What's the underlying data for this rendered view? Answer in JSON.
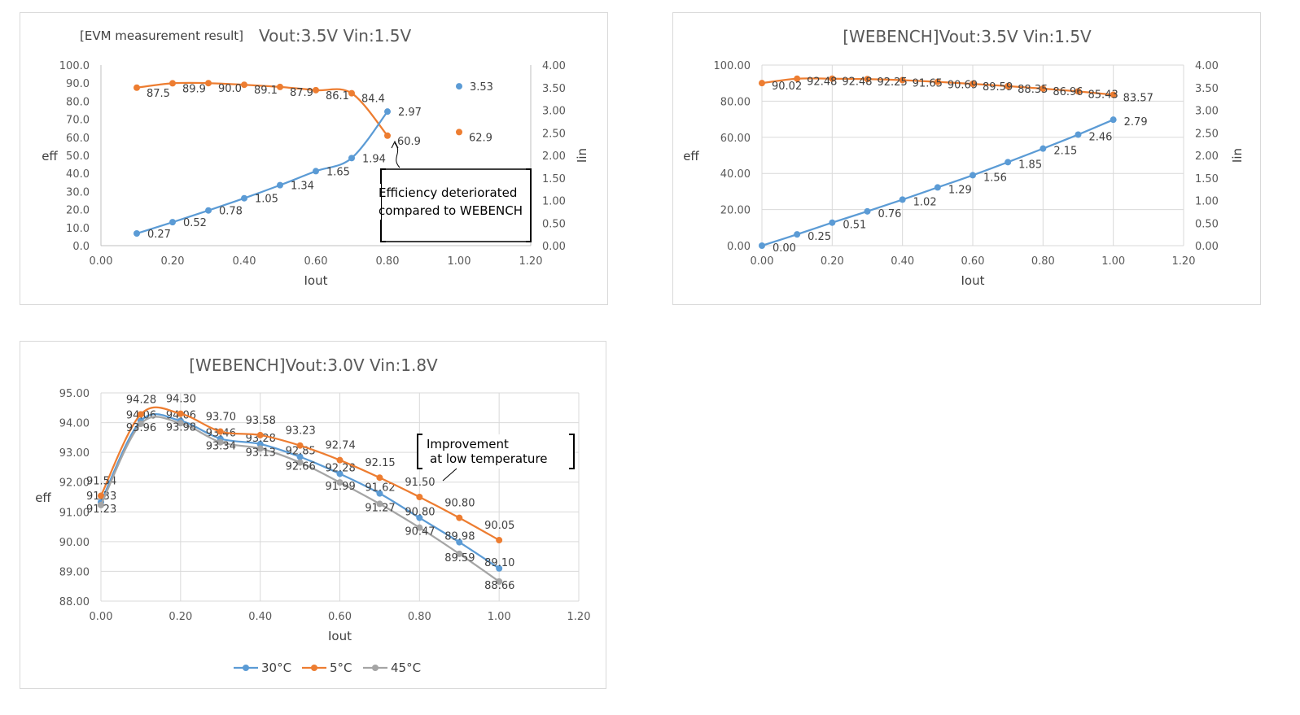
{
  "chart_data": [
    {
      "type": "line",
      "title_prefix": "[EVM measurement result]",
      "title": "Vout:3.5V Vin:1.5V",
      "xlabel": "Iout",
      "ylabel": "eff",
      "y2label": "Iin",
      "xlim": [
        0,
        1.2
      ],
      "ylim": [
        0,
        100
      ],
      "y2lim": [
        0,
        4
      ],
      "x_ticks": [
        "0.00",
        "0.20",
        "0.40",
        "0.60",
        "0.80",
        "1.00",
        "1.20"
      ],
      "y_ticks": [
        "0.0",
        "10.0",
        "20.0",
        "30.0",
        "40.0",
        "50.0",
        "60.0",
        "70.0",
        "80.0",
        "90.0",
        "100.0"
      ],
      "y2_ticks": [
        "0.00",
        "0.50",
        "1.00",
        "1.50",
        "2.00",
        "2.50",
        "3.00",
        "3.50",
        "4.00"
      ],
      "grid": false,
      "series": [
        {
          "axis": "primary",
          "color": "#ed7d31",
          "x": [
            0.1,
            0.2,
            0.3,
            0.4,
            0.5,
            0.6,
            0.7,
            0.8,
            1.0
          ],
          "values": [
            87.5,
            89.9,
            90.0,
            89.1,
            87.9,
            86.1,
            84.4,
            60.9,
            62.9
          ],
          "labels": [
            "87.5",
            "89.9",
            "90.0",
            "89.1",
            "87.9",
            "86.1",
            "84.4",
            "60.9",
            "62.9"
          ]
        },
        {
          "axis": "secondary",
          "color": "#5b9bd5",
          "x": [
            0.1,
            0.2,
            0.3,
            0.4,
            0.5,
            0.6,
            0.7,
            0.8,
            1.0
          ],
          "values": [
            0.27,
            0.52,
            0.78,
            1.05,
            1.34,
            1.65,
            1.94,
            2.97,
            3.53
          ],
          "labels": [
            "0.27",
            "0.52",
            "0.78",
            "1.05",
            "1.34",
            "1.65",
            "1.94",
            "2.97",
            "3.53"
          ]
        }
      ],
      "annotation": {
        "lines": [
          "Efficiency deteriorated",
          "compared to WEBENCH"
        ]
      }
    },
    {
      "type": "line",
      "title": "[WEBENCH]Vout:3.5V Vin:1.5V",
      "xlabel": "Iout",
      "ylabel": "eff",
      "y2label": "Iin",
      "xlim": [
        0,
        1.2
      ],
      "ylim": [
        0,
        100
      ],
      "y2lim": [
        0,
        4
      ],
      "x_ticks": [
        "0.00",
        "0.20",
        "0.40",
        "0.60",
        "0.80",
        "1.00",
        "1.20"
      ],
      "y_ticks": [
        "0.00",
        "20.00",
        "40.00",
        "60.00",
        "80.00",
        "100.00"
      ],
      "y2_ticks": [
        "0.00",
        "0.50",
        "1.00",
        "1.50",
        "2.00",
        "2.50",
        "3.00",
        "3.50",
        "4.00"
      ],
      "grid": true,
      "series": [
        {
          "axis": "primary",
          "color": "#ed7d31",
          "x": [
            0.0,
            0.1,
            0.2,
            0.3,
            0.4,
            0.5,
            0.6,
            0.7,
            0.8,
            0.9,
            1.0
          ],
          "values": [
            90.02,
            92.48,
            92.48,
            92.25,
            91.65,
            90.69,
            89.59,
            88.35,
            86.96,
            85.43,
            83.57
          ],
          "labels": [
            "90.02",
            "92.48",
            "92.48",
            "92.25",
            "91.65",
            "90.69",
            "89.59",
            "88.35",
            "86.96",
            "85.43",
            "83.57"
          ]
        },
        {
          "axis": "secondary",
          "color": "#5b9bd5",
          "x": [
            0.0,
            0.1,
            0.2,
            0.3,
            0.4,
            0.5,
            0.6,
            0.7,
            0.8,
            0.9,
            1.0
          ],
          "values": [
            0.0,
            0.25,
            0.51,
            0.76,
            1.02,
            1.29,
            1.56,
            1.85,
            2.15,
            2.46,
            2.79
          ],
          "labels": [
            "0.00",
            "0.25",
            "0.51",
            "0.76",
            "1.02",
            "1.29",
            "1.56",
            "1.85",
            "2.15",
            "2.46",
            "2.79"
          ]
        }
      ]
    },
    {
      "type": "line",
      "title": "[WEBENCH]Vout:3.0V Vin:1.8V",
      "xlabel": "Iout",
      "ylabel": "eff",
      "xlim": [
        0,
        1.2
      ],
      "ylim": [
        88,
        95
      ],
      "x_ticks": [
        "0.00",
        "0.20",
        "0.40",
        "0.60",
        "0.80",
        "1.00",
        "1.20"
      ],
      "y_ticks": [
        "88.00",
        "89.00",
        "90.00",
        "91.00",
        "92.00",
        "93.00",
        "94.00",
        "95.00"
      ],
      "grid": true,
      "legend_position": "bottom",
      "series": [
        {
          "name": "30°C",
          "color": "#5b9bd5",
          "x": [
            0.0,
            0.1,
            0.2,
            0.3,
            0.4,
            0.5,
            0.6,
            0.7,
            0.8,
            0.9,
            1.0
          ],
          "values": [
            91.33,
            94.06,
            94.06,
            93.46,
            93.28,
            92.85,
            92.28,
            91.62,
            90.8,
            89.98,
            89.1
          ],
          "labels": [
            "91.33",
            "94.06",
            "94.06",
            "93.46",
            "93.28",
            "92.85",
            "92.28",
            "91.62",
            "90.80",
            "89.98",
            "89.10"
          ]
        },
        {
          "name": "5°C",
          "color": "#ed7d31",
          "x": [
            0.0,
            0.1,
            0.2,
            0.3,
            0.4,
            0.5,
            0.6,
            0.7,
            0.8,
            0.9,
            1.0
          ],
          "values": [
            91.54,
            94.28,
            94.3,
            93.7,
            93.58,
            93.23,
            92.74,
            92.15,
            91.5,
            90.8,
            90.05
          ],
          "labels": [
            "91.54",
            "94.28",
            "94.30",
            "93.70",
            "93.58",
            "93.23",
            "92.74",
            "92.15",
            "91.50",
            "90.80",
            "90.05"
          ]
        },
        {
          "name": "45°C",
          "color": "#a5a5a5",
          "x": [
            0.0,
            0.1,
            0.2,
            0.3,
            0.4,
            0.5,
            0.6,
            0.7,
            0.8,
            0.9,
            1.0
          ],
          "values": [
            91.23,
            93.96,
            93.98,
            93.34,
            93.13,
            92.66,
            91.99,
            91.27,
            90.47,
            89.59,
            88.66
          ],
          "labels": [
            "91.23",
            "93.96",
            "93.98",
            "93.34",
            "93.13",
            "92.66",
            "91.99",
            "91.27",
            "90.47",
            "89.59",
            "88.66"
          ]
        }
      ],
      "annotation": {
        "lines": [
          "Improvement",
          "at low temperature"
        ]
      }
    }
  ]
}
